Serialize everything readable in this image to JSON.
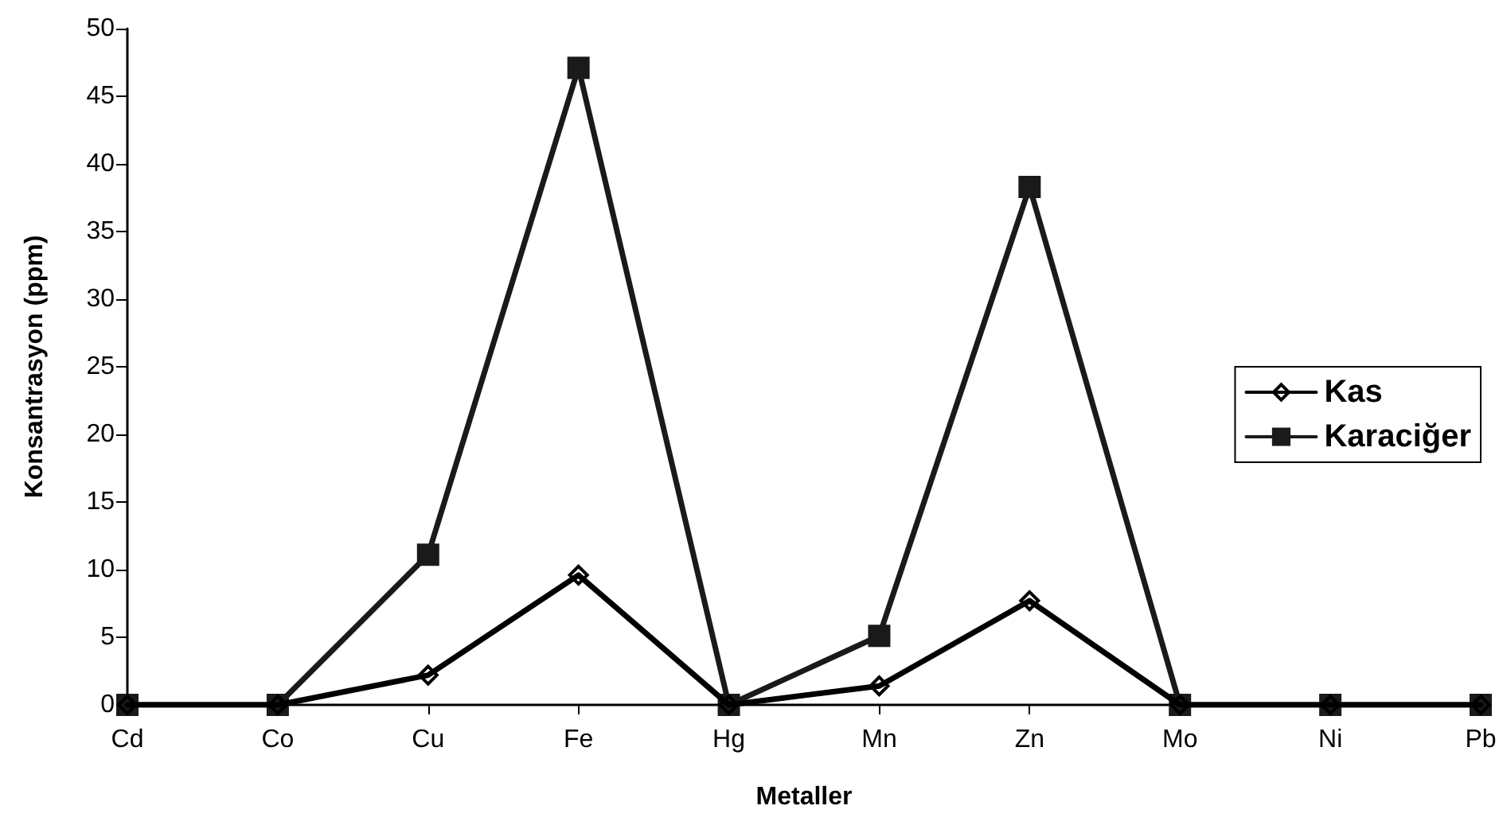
{
  "chart_data": {
    "type": "line",
    "xlabel": "Metaller",
    "ylabel": "Konsantrasyon (ppm)",
    "categories": [
      "Cd",
      "Co",
      "Cu",
      "Fe",
      "Hg",
      "Mn",
      "Zn",
      "Mo",
      "Ni",
      "Pb"
    ],
    "series": [
      {
        "name": "Kas",
        "color": "#000000",
        "marker": "diamond",
        "values": [
          0,
          0,
          2.2,
          9.6,
          0,
          1.4,
          7.7,
          0,
          0,
          0
        ]
      },
      {
        "name": "Karaciğer",
        "color": "#1a1a1a",
        "marker": "square",
        "values": [
          0,
          0,
          11.1,
          47.1,
          0,
          5.1,
          38.3,
          0,
          0,
          0
        ]
      }
    ],
    "ylim": [
      0,
      50
    ],
    "yticks": [
      0,
      5,
      10,
      15,
      20,
      25,
      30,
      35,
      40,
      45,
      50
    ],
    "grid": false,
    "legend": "right",
    "line_style": "solid"
  }
}
